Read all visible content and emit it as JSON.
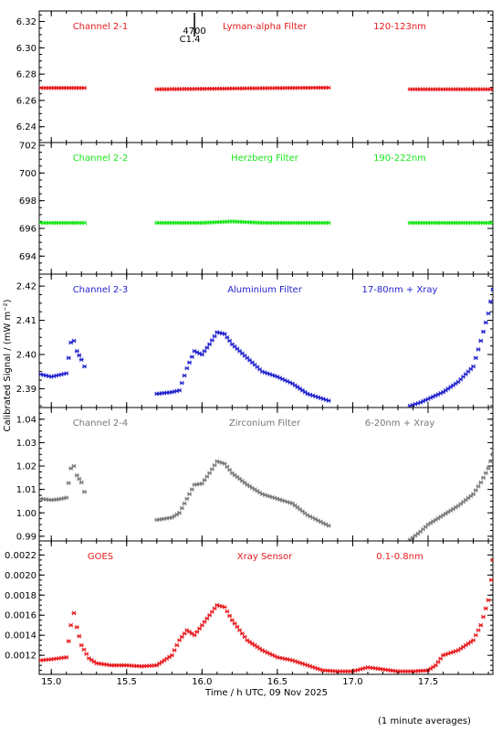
{
  "footer_note": "(1 minute averages)",
  "x_axis": {
    "label": "Time / h UTC, 09 Nov 2025",
    "xlim": [
      14.92,
      17.93
    ],
    "ticks": [
      15.0,
      15.5,
      16.0,
      16.5,
      17.0,
      17.5
    ],
    "tick_labels": [
      "15.0",
      "15.5",
      "16.0",
      "16.5",
      "17.0",
      "17.5"
    ]
  },
  "y_axis_label": "Calibrated Signal / (mW m⁻²)",
  "event_marker": {
    "x": 15.95,
    "label_top": "4700",
    "label_bottom": "C1.4"
  },
  "chart_data": [
    {
      "type": "scatter",
      "panel": "Channel 2-1",
      "titles": [
        "Channel 2-1",
        "Lyman-alpha Filter",
        "120-123nm"
      ],
      "color": "#e8191c",
      "ylim": [
        6.228,
        6.328
      ],
      "yticks": [
        6.24,
        6.26,
        6.28,
        6.3,
        6.32
      ],
      "ytick_labels": [
        "6.24",
        "6.26",
        "6.28",
        "6.30",
        "6.32"
      ],
      "segments": [
        {
          "x": [
            14.93,
            15.0,
            15.1,
            15.2,
            15.22
          ],
          "y": [
            6.2695,
            6.2695,
            6.2695,
            6.2695,
            6.2695
          ]
        },
        {
          "x": [
            15.7,
            16.0,
            16.3,
            16.6,
            16.84
          ],
          "y": [
            6.2685,
            6.2688,
            6.2692,
            6.2695,
            6.2697
          ]
        },
        {
          "x": [
            17.38,
            17.6,
            17.93
          ],
          "y": [
            6.2685,
            6.2685,
            6.2685
          ]
        }
      ]
    },
    {
      "type": "scatter",
      "panel": "Channel 2-2",
      "titles": [
        "Channel 2-2",
        "Herzberg Filter",
        "190-222nm"
      ],
      "color": "#19e619",
      "ylim": [
        692.7,
        702.2
      ],
      "yticks": [
        694,
        696,
        698,
        700,
        702
      ],
      "ytick_labels": [
        "694",
        "696",
        "698",
        "700",
        "702"
      ],
      "segments": [
        {
          "x": [
            14.93,
            15.0,
            15.1,
            15.2,
            15.22
          ],
          "y": [
            696.4,
            696.4,
            696.4,
            696.4,
            696.4
          ]
        },
        {
          "x": [
            15.7,
            16.0,
            16.2,
            16.4,
            16.6,
            16.84
          ],
          "y": [
            696.4,
            696.4,
            696.5,
            696.4,
            696.4,
            696.4
          ]
        },
        {
          "x": [
            17.38,
            17.6,
            17.93
          ],
          "y": [
            696.4,
            696.4,
            696.4
          ]
        }
      ]
    },
    {
      "type": "scatter",
      "panel": "Channel 2-3",
      "titles": [
        "Channel 2-3",
        "Aluminium Filter",
        "17-80nm + Xray"
      ],
      "color": "#1f1fcf",
      "ylim": [
        2.3845,
        2.4235
      ],
      "yticks": [
        2.39,
        2.4,
        2.41,
        2.42
      ],
      "ytick_labels": [
        "2.39",
        "2.40",
        "2.41",
        "2.42"
      ],
      "segments": [
        {
          "x": [
            14.93,
            15.0,
            15.05,
            15.1,
            15.13,
            15.15,
            15.17,
            15.2,
            15.22
          ],
          "y": [
            2.3942,
            2.3935,
            2.394,
            2.3945,
            2.4035,
            2.404,
            2.401,
            2.3985,
            2.3965
          ]
        },
        {
          "x": [
            15.7,
            15.8,
            15.85,
            15.9,
            15.95,
            16.0,
            16.05,
            16.1,
            16.15,
            16.2,
            16.3,
            16.4,
            16.5,
            16.6,
            16.7,
            16.84
          ],
          "y": [
            2.3885,
            2.389,
            2.3895,
            2.396,
            2.401,
            2.4,
            2.403,
            2.4065,
            2.406,
            2.403,
            2.399,
            2.395,
            2.3935,
            2.3915,
            2.3885,
            2.3865
          ]
        },
        {
          "x": [
            17.38,
            17.45,
            17.5,
            17.6,
            17.7,
            17.8,
            17.85,
            17.9,
            17.93
          ],
          "y": [
            2.385,
            2.386,
            2.387,
            2.389,
            2.392,
            2.3965,
            2.404,
            2.412,
            2.419
          ]
        }
      ]
    },
    {
      "type": "scatter",
      "panel": "Channel 2-4",
      "titles": [
        "Channel 2-4",
        "Zirconium Filter",
        "6-20nm + Xray"
      ],
      "color": "#777777",
      "ylim": [
        0.988,
        1.045
      ],
      "yticks": [
        0.99,
        1.0,
        1.01,
        1.02,
        1.03,
        1.04
      ],
      "ytick_labels": [
        "0.99",
        "1.00",
        "1.01",
        "1.02",
        "1.03",
        "1.04"
      ],
      "segments": [
        {
          "x": [
            14.93,
            15.0,
            15.05,
            15.1,
            15.13,
            15.15,
            15.17,
            15.2,
            15.22
          ],
          "y": [
            1.006,
            1.0055,
            1.0058,
            1.0065,
            1.019,
            1.02,
            1.016,
            1.013,
            1.009
          ]
        },
        {
          "x": [
            15.7,
            15.8,
            15.85,
            15.9,
            15.95,
            16.0,
            16.05,
            16.1,
            16.15,
            16.2,
            16.3,
            16.4,
            16.5,
            16.6,
            16.7,
            16.84
          ],
          "y": [
            0.997,
            0.998,
            1.0,
            1.006,
            1.012,
            1.0125,
            1.017,
            1.022,
            1.021,
            1.017,
            1.012,
            1.008,
            1.006,
            1.004,
            0.999,
            0.9945
          ]
        },
        {
          "x": [
            17.38,
            17.45,
            17.5,
            17.6,
            17.7,
            17.8,
            17.85,
            17.9,
            17.93
          ],
          "y": [
            0.9885,
            0.992,
            0.995,
            0.999,
            1.003,
            1.008,
            1.013,
            1.019,
            1.025
          ]
        }
      ]
    },
    {
      "type": "scatter",
      "panel": "GOES",
      "titles": [
        "GOES",
        "Xray Sensor",
        "0.1-0.8nm"
      ],
      "color": "#e8191c",
      "ylim": [
        0.00101,
        0.00234
      ],
      "yticks": [
        0.0012,
        0.0014,
        0.0016,
        0.0018,
        0.002,
        0.0022
      ],
      "ytick_labels": [
        "0.0012",
        "0.0014",
        "0.0016",
        "0.0018",
        "0.0020",
        "0.0022"
      ],
      "segments": [
        {
          "x": [
            14.93,
            15.0,
            15.05,
            15.1,
            15.13,
            15.15,
            15.17,
            15.2,
            15.25,
            15.3,
            15.4,
            15.5,
            15.6,
            15.7,
            15.8,
            15.85,
            15.9,
            15.95,
            16.0,
            16.05,
            16.1,
            16.15,
            16.2,
            16.3,
            16.4,
            16.5,
            16.6,
            16.7,
            16.8,
            16.9,
            17.0,
            17.1,
            17.2,
            17.3,
            17.4,
            17.5,
            17.55,
            17.6,
            17.7,
            17.75,
            17.8,
            17.85,
            17.9,
            17.92,
            17.93
          ],
          "y": [
            0.00115,
            0.00116,
            0.00117,
            0.00118,
            0.0015,
            0.00162,
            0.00148,
            0.0013,
            0.00117,
            0.00112,
            0.0011,
            0.0011,
            0.00109,
            0.0011,
            0.0012,
            0.00135,
            0.00145,
            0.0014,
            0.0015,
            0.0016,
            0.0017,
            0.00168,
            0.00155,
            0.00135,
            0.00125,
            0.00118,
            0.00115,
            0.0011,
            0.00105,
            0.00104,
            0.00104,
            0.00108,
            0.00106,
            0.00104,
            0.00104,
            0.00105,
            0.0011,
            0.0012,
            0.00125,
            0.0013,
            0.00135,
            0.0015,
            0.00175,
            0.00195,
            0.00215
          ]
        }
      ]
    }
  ]
}
